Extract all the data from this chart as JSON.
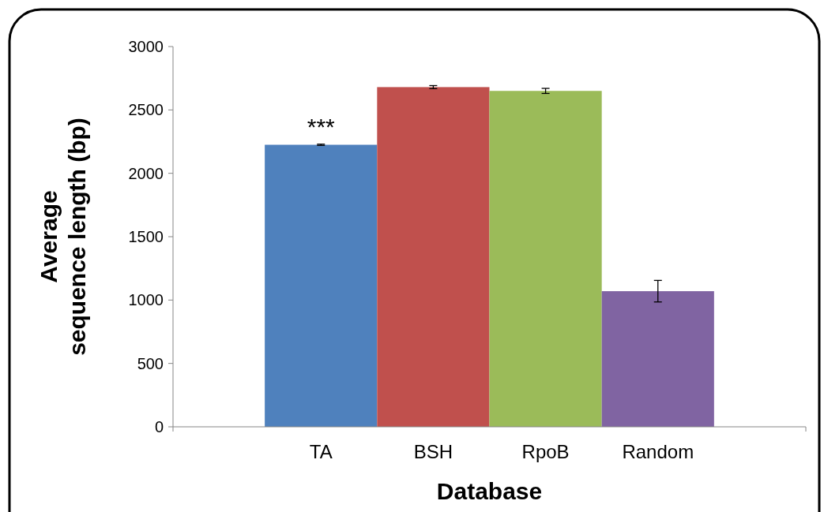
{
  "chart_data": {
    "type": "bar",
    "xlabel": "Database",
    "ylabel": "Average sequence length (bp)",
    "categories": [
      "TA",
      "BSH",
      "RpoB",
      "Random"
    ],
    "values": [
      2225,
      2680,
      2650,
      1070
    ],
    "colors": [
      "#4f81bd",
      "#c0504d",
      "#9bbb59",
      "#8064a2"
    ],
    "errors": [
      5,
      12,
      20,
      85
    ],
    "ylim": [
      0,
      3000
    ],
    "yticks": [
      0,
      500,
      1000,
      1500,
      2000,
      2500,
      3000
    ],
    "annotations": [
      {
        "text": "***",
        "x": "TA",
        "y": 2230
      }
    ],
    "tick_labels": true
  }
}
